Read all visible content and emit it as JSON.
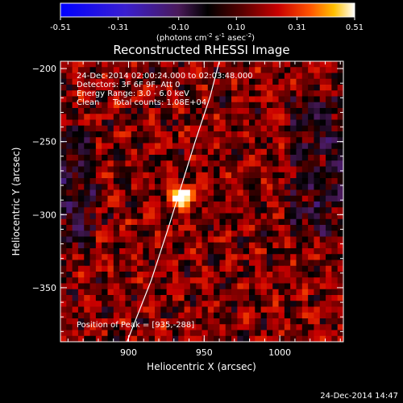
{
  "colorbar": {
    "tick_labels": [
      "-0.51",
      "-0.31",
      "-0.10",
      "0.10",
      "0.31",
      "0.51"
    ],
    "tick_values": [
      -0.51,
      -0.31,
      -0.1,
      0.1,
      0.31,
      0.51
    ],
    "range": [
      -0.51,
      0.51
    ],
    "units_label": "(photons cm",
    "units_exp1": "-2",
    "units_mid": " s",
    "units_exp2": "-1",
    "units_tail": " asec",
    "units_exp3": "-2",
    "units_close": ")"
  },
  "chart_data": {
    "type": "heatmap",
    "title": "Reconstructed RHESSI Image",
    "xlabel": "Heliocentric X (arcsec)",
    "ylabel": "Heliocentric Y (arcsec)",
    "xlim": [
      855,
      1042
    ],
    "ylim": [
      -387,
      -195
    ],
    "x_ticks": [
      900,
      950,
      1000
    ],
    "x_tick_labels": [
      "900",
      "950",
      "1000"
    ],
    "y_ticks": [
      -200,
      -250,
      -300,
      -350
    ],
    "y_tick_labels": [
      "−200",
      "−250",
      "−300",
      "−350"
    ],
    "annotations": [
      "24-Dec-2014 02:00:24.000 to 02:03:48.000",
      "Detectors: 3F 6F 9F, Att 0",
      "Energy Range: 3.0 - 6.0 keV",
      "Clean",
      "Total counts: 1.08E+04"
    ],
    "peak_label": "Position of Peak = [935,-288]",
    "peak": {
      "x": 935,
      "y": -288,
      "value": 0.51
    },
    "colormap": "hot-diverging (blue-purple-black-red-yellow-white)",
    "limb_curve": [
      [
        899,
        -387
      ],
      [
        915,
        -345
      ],
      [
        926,
        -310
      ],
      [
        935,
        -280
      ],
      [
        944,
        -250
      ],
      [
        954,
        -219
      ],
      [
        960,
        -195
      ]
    ]
  },
  "footer": {
    "timestamp": "24-Dec-2014 14:47"
  }
}
